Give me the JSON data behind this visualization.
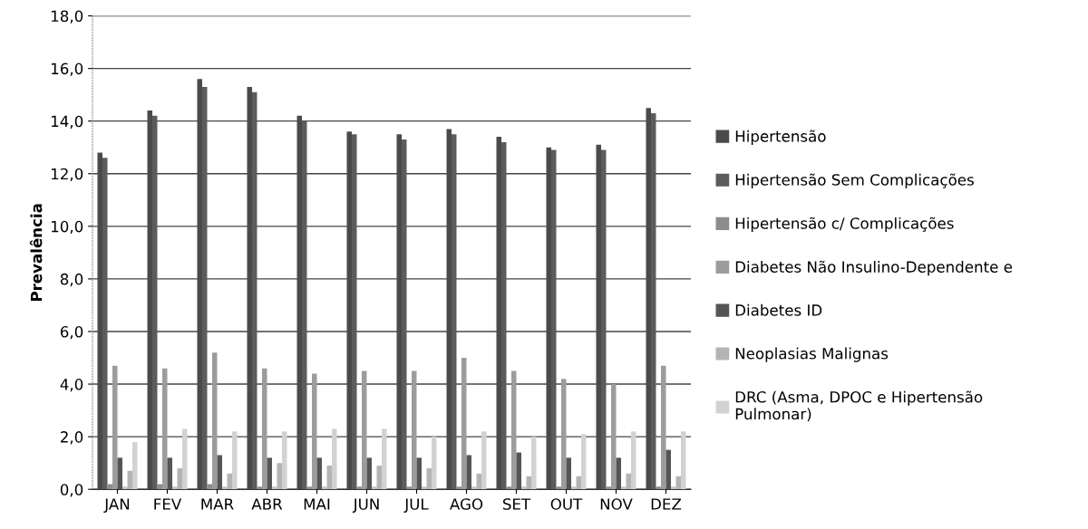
{
  "chart_data": {
    "type": "bar",
    "ylabel": "Prevalência",
    "categories": [
      "JAN",
      "FEV",
      "MAR",
      "ABR",
      "MAI",
      "JUN",
      "JUL",
      "AGO",
      "SET",
      "OUT",
      "NOV",
      "DEZ"
    ],
    "series": [
      {
        "name": "Hipertensão",
        "color": "#4a4a4a",
        "values": [
          12.8,
          14.4,
          15.6,
          15.3,
          14.2,
          13.6,
          13.5,
          13.7,
          13.4,
          13.0,
          13.1,
          14.5
        ]
      },
      {
        "name": "Hipertensão Sem Complicações",
        "color": "#5c5c5c",
        "values": [
          12.6,
          14.2,
          15.3,
          15.1,
          14.0,
          13.5,
          13.3,
          13.5,
          13.2,
          12.9,
          12.9,
          14.3
        ]
      },
      {
        "name": "Hipertensão c/ Complicações",
        "color": "#8c8c8c",
        "values": [
          0.2,
          0.2,
          0.2,
          0.1,
          0.1,
          0.1,
          0.1,
          0.1,
          0.1,
          0.1,
          0.1,
          0.1
        ]
      },
      {
        "name": "Diabetes Não Insulino-Dependente e",
        "color": "#9c9c9c",
        "values": [
          4.7,
          4.6,
          5.2,
          4.6,
          4.4,
          4.5,
          4.5,
          5.0,
          4.5,
          4.2,
          4.0,
          4.7
        ]
      },
      {
        "name": "Diabetes ID",
        "color": "#555555",
        "values": [
          1.2,
          1.2,
          1.3,
          1.2,
          1.2,
          1.2,
          1.2,
          1.3,
          1.4,
          1.2,
          1.2,
          1.5
        ]
      },
      {
        "color": "#c4c4c4",
        "values": [
          0.1,
          0.1,
          0.1,
          0.1,
          0.1,
          0.1,
          0.1,
          0.1,
          0.1,
          0.1,
          0.1,
          0.1
        ]
      },
      {
        "name": "Neoplasias Malignas",
        "color": "#b4b4b4",
        "values": [
          0.7,
          0.8,
          0.6,
          1.0,
          0.9,
          0.9,
          0.8,
          0.6,
          0.5,
          0.5,
          0.6,
          0.5
        ]
      },
      {
        "name": "DRC (Asma, DPOC e Hipertensão\nPulmonar)",
        "color": "#d2d2d2",
        "values": [
          1.8,
          2.3,
          2.2,
          2.2,
          2.3,
          2.3,
          2.0,
          2.2,
          2.0,
          2.1,
          2.2,
          2.2
        ]
      }
    ],
    "ylim": [
      0,
      18
    ],
    "yticks": [
      {
        "value": 0,
        "label": "0,0"
      },
      {
        "value": 2,
        "label": "2,0"
      },
      {
        "value": 4,
        "label": "4,0"
      },
      {
        "value": 6,
        "label": "6,0"
      },
      {
        "value": 8,
        "label": "8,0"
      },
      {
        "value": 10,
        "label": "10,0"
      },
      {
        "value": 12,
        "label": "12,0"
      },
      {
        "value": 14,
        "label": "14,0"
      },
      {
        "value": 16,
        "label": "16,0"
      },
      {
        "value": 18,
        "label": "18,0"
      }
    ],
    "grid": "y",
    "legend": "right"
  }
}
